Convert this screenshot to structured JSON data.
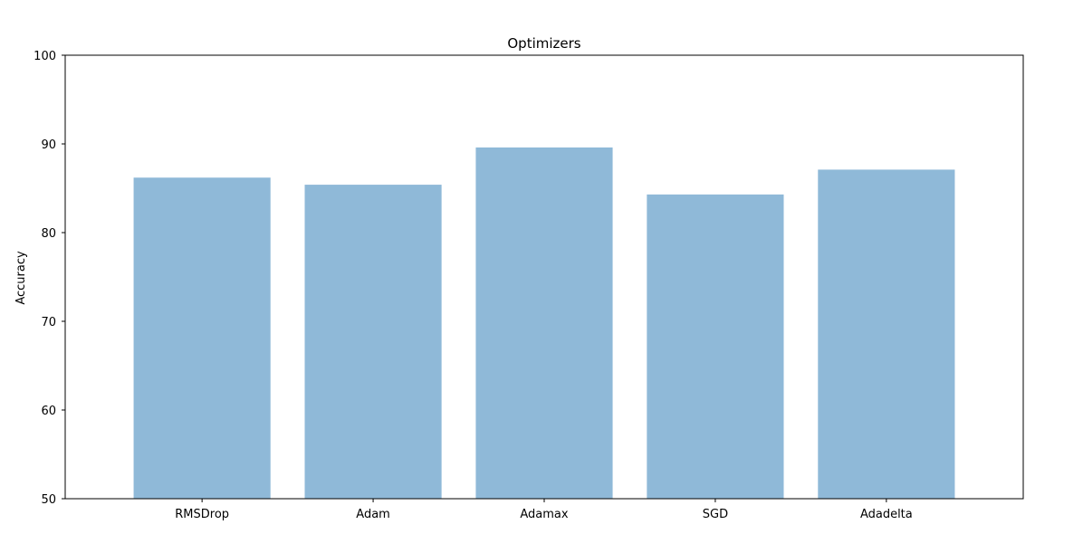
{
  "chart_data": {
    "type": "bar",
    "title": "Optimizers",
    "xlabel": "",
    "ylabel": "Accuracy",
    "categories": [
      "RMSDrop",
      "Adam",
      "Adamax",
      "SGD",
      "Adadelta"
    ],
    "values": [
      86.2,
      85.4,
      89.6,
      84.3,
      87.1
    ],
    "ylim": [
      50,
      100
    ],
    "yticks": [
      50,
      60,
      70,
      80,
      90,
      100
    ],
    "bar_color": "#8fb9d8",
    "grid": false,
    "legend": "none"
  }
}
